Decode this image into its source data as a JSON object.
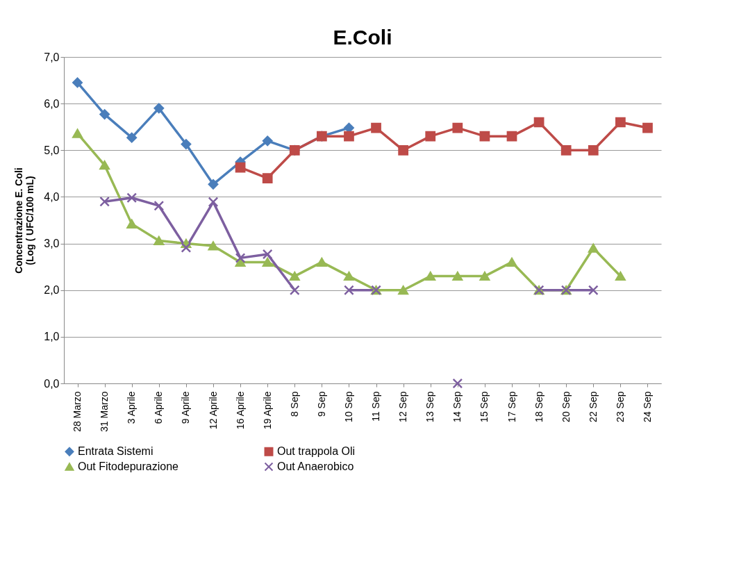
{
  "chart_data": {
    "type": "line",
    "title": "E.Coli",
    "ylabel": "Concentrazione E. Coli\n(Log ( UFC/100 mL)",
    "categories": [
      "28 Marzo",
      "31 Marzo",
      "3 Aprile",
      "6 Aprile",
      "9 Aprile",
      "12 Aprile",
      "16 Aprile",
      "19 Aprile",
      "8 Sep",
      "9 Sep",
      "10 Sep",
      "11 Sep",
      "12 Sep",
      "13 Sep",
      "14 Sep",
      "15 Sep",
      "17 Sep",
      "18 Sep",
      "20 Sep",
      "22 Sep",
      "23 Sep",
      "24 Sep"
    ],
    "series": [
      {
        "name": "Entrata Sistemi",
        "color": "#4a7ebb",
        "marker": "diamond",
        "values": [
          6.45,
          5.77,
          5.27,
          5.9,
          5.13,
          4.27,
          4.75,
          5.2,
          5.0,
          5.3,
          5.48,
          null,
          null,
          null,
          null,
          null,
          null,
          null,
          null,
          null,
          null,
          null
        ]
      },
      {
        "name": "Out trappola Oli",
        "color": "#be4b48",
        "marker": "square",
        "values": [
          null,
          null,
          null,
          null,
          null,
          null,
          4.63,
          4.4,
          5.0,
          5.3,
          5.3,
          5.48,
          5.0,
          5.3,
          5.48,
          5.3,
          5.3,
          5.6,
          5.0,
          5.0,
          5.6,
          5.48
        ]
      },
      {
        "name": "Out Fitodepurazione",
        "color": "#98b954",
        "marker": "triangle",
        "values": [
          5.36,
          4.68,
          3.42,
          3.06,
          3.0,
          2.95,
          2.6,
          2.6,
          2.3,
          2.6,
          2.3,
          2.0,
          2.0,
          2.3,
          2.3,
          2.3,
          2.6,
          2.0,
          2.0,
          2.9,
          2.3,
          null
        ]
      },
      {
        "name": "Out Anaerobico",
        "color": "#7d5fa0",
        "marker": "cross",
        "values": [
          null,
          3.9,
          3.98,
          3.81,
          2.91,
          3.89,
          2.69,
          2.77,
          2.0,
          null,
          2.0,
          2.0,
          null,
          null,
          0.0,
          null,
          null,
          2.0,
          2.0,
          2.0,
          null,
          null
        ]
      }
    ],
    "ylim": [
      0,
      7
    ],
    "yticks": [
      {
        "value": 0,
        "label": "0,0"
      },
      {
        "value": 1,
        "label": "1,0"
      },
      {
        "value": 2,
        "label": "2,0"
      },
      {
        "value": 3,
        "label": "3,0"
      },
      {
        "value": 4,
        "label": "4,0"
      },
      {
        "value": 5,
        "label": "5,0"
      },
      {
        "value": 6,
        "label": "6,0"
      },
      {
        "value": 7,
        "label": "7,0"
      }
    ],
    "grid": "y",
    "legend": "bottom",
    "line_style": "solid"
  }
}
